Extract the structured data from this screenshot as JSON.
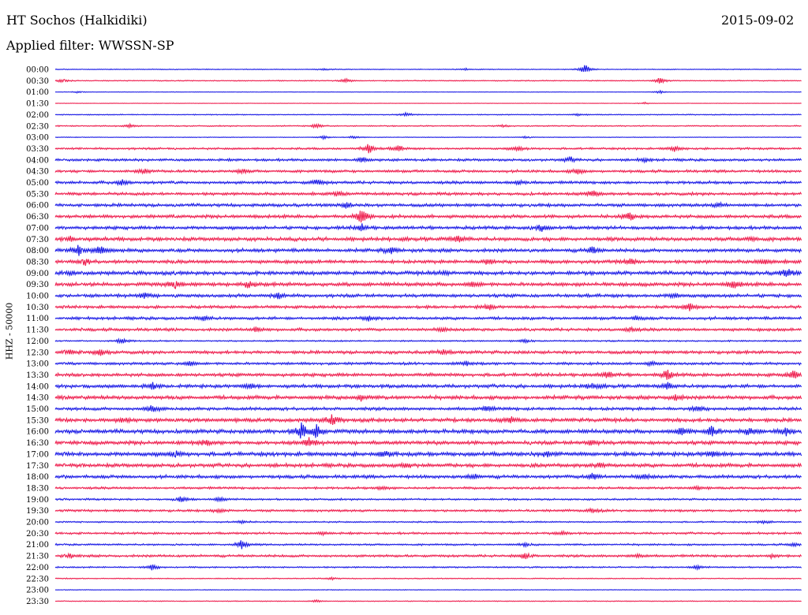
{
  "header": {
    "station": "HT Sochos (Halkidiki)",
    "date": "2015-09-02",
    "filter": "Applied filter: WWSSN-SP"
  },
  "colors": {
    "trace_a": "#1b1be6",
    "trace_b": "#ee1e4e"
  },
  "chart_data": {
    "type": "line",
    "title": "HT Sochos (Halkidiki)",
    "subtitle": "Applied filter: WWSSN-SP",
    "date": "2015-09-02",
    "ylabel": "HHZ - 50000",
    "xlabel": "",
    "grid": false,
    "legend": "none",
    "series_colors": [
      "#1b1be6",
      "#ee1e4e"
    ],
    "rows": [
      {
        "label": "00:00",
        "color": "#1b1be6",
        "noise": 0.1,
        "events": [
          [
            0.71,
            1.6
          ],
          [
            0.55,
            0.3
          ],
          [
            0.36,
            0.3
          ]
        ]
      },
      {
        "label": "00:30",
        "color": "#ee1e4e",
        "noise": 0.12,
        "events": [
          [
            0.01,
            0.5
          ],
          [
            0.39,
            0.6
          ],
          [
            0.81,
            1.2
          ]
        ]
      },
      {
        "label": "01:00",
        "color": "#1b1be6",
        "noise": 0.05,
        "events": [
          [
            0.03,
            0.3
          ],
          [
            0.81,
            0.5
          ]
        ]
      },
      {
        "label": "01:30",
        "color": "#ee1e4e",
        "noise": 0.05,
        "events": [
          [
            0.79,
            0.3
          ]
        ]
      },
      {
        "label": "02:00",
        "color": "#1b1be6",
        "noise": 0.12,
        "events": [
          [
            0.47,
            0.6
          ],
          [
            0.7,
            0.3
          ]
        ]
      },
      {
        "label": "02:30",
        "color": "#ee1e4e",
        "noise": 0.14,
        "events": [
          [
            0.1,
            0.5
          ],
          [
            0.35,
            0.7
          ],
          [
            0.6,
            0.3
          ]
        ]
      },
      {
        "label": "03:00",
        "color": "#1b1be6",
        "noise": 0.08,
        "events": [
          [
            0.36,
            0.6
          ],
          [
            0.4,
            0.5
          ],
          [
            0.63,
            0.3
          ]
        ]
      },
      {
        "label": "03:30",
        "color": "#ee1e4e",
        "noise": 0.25,
        "events": [
          [
            0.42,
            1.6
          ],
          [
            0.46,
            0.9
          ],
          [
            0.62,
            0.8
          ],
          [
            0.83,
            0.9
          ]
        ]
      },
      {
        "label": "04:00",
        "color": "#1b1be6",
        "noise": 0.3,
        "events": [
          [
            0.41,
            0.8
          ],
          [
            0.69,
            0.8
          ],
          [
            0.79,
            0.6
          ]
        ]
      },
      {
        "label": "04:30",
        "color": "#ee1e4e",
        "noise": 0.32,
        "events": [
          [
            0.12,
            0.6
          ],
          [
            0.25,
            0.7
          ],
          [
            0.7,
            0.8
          ]
        ]
      },
      {
        "label": "05:00",
        "color": "#1b1be6",
        "noise": 0.35,
        "events": [
          [
            0.09,
            0.8
          ],
          [
            0.35,
            0.9
          ],
          [
            0.62,
            0.8
          ]
        ]
      },
      {
        "label": "05:30",
        "color": "#ee1e4e",
        "noise": 0.35,
        "events": [
          [
            0.38,
            0.7
          ],
          [
            0.72,
            1.0
          ]
        ]
      },
      {
        "label": "06:00",
        "color": "#1b1be6",
        "noise": 0.38,
        "events": [
          [
            0.39,
            0.8
          ],
          [
            0.89,
            0.6
          ]
        ]
      },
      {
        "label": "06:30",
        "color": "#ee1e4e",
        "noise": 0.4,
        "events": [
          [
            0.41,
            2.4
          ],
          [
            0.77,
            1.2
          ]
        ]
      },
      {
        "label": "07:00",
        "color": "#1b1be6",
        "noise": 0.4,
        "events": [
          [
            0.41,
            1.0
          ],
          [
            0.65,
            1.1
          ]
        ]
      },
      {
        "label": "07:30",
        "color": "#ee1e4e",
        "noise": 0.45,
        "events": [
          [
            0.02,
            0.8
          ],
          [
            0.54,
            1.1
          ],
          [
            0.93,
            0.7
          ]
        ]
      },
      {
        "label": "08:00",
        "color": "#1b1be6",
        "noise": 0.42,
        "events": [
          [
            0.03,
            1.6
          ],
          [
            0.06,
            1.8
          ],
          [
            0.45,
            1.0
          ],
          [
            0.72,
            1.0
          ]
        ]
      },
      {
        "label": "08:30",
        "color": "#ee1e4e",
        "noise": 0.42,
        "events": [
          [
            0.04,
            0.9
          ],
          [
            0.58,
            0.9
          ],
          [
            0.77,
            1.1
          ],
          [
            0.95,
            0.8
          ]
        ]
      },
      {
        "label": "09:00",
        "color": "#1b1be6",
        "noise": 0.45,
        "events": [
          [
            0.02,
            0.5
          ],
          [
            0.52,
            0.7
          ],
          [
            0.98,
            1.6
          ]
        ]
      },
      {
        "label": "09:30",
        "color": "#ee1e4e",
        "noise": 0.45,
        "events": [
          [
            0.16,
            1.3
          ],
          [
            0.26,
            1.0
          ],
          [
            0.56,
            0.8
          ],
          [
            0.91,
            1.2
          ]
        ]
      },
      {
        "label": "10:00",
        "color": "#1b1be6",
        "noise": 0.4,
        "events": [
          [
            0.12,
            0.8
          ],
          [
            0.3,
            0.9
          ],
          [
            0.83,
            0.7
          ]
        ]
      },
      {
        "label": "10:30",
        "color": "#ee1e4e",
        "noise": 0.35,
        "events": [
          [
            0.58,
            0.9
          ],
          [
            0.85,
            1.2
          ]
        ]
      },
      {
        "label": "11:00",
        "color": "#1b1be6",
        "noise": 0.35,
        "events": [
          [
            0.2,
            0.8
          ],
          [
            0.42,
            0.7
          ],
          [
            0.78,
            0.7
          ]
        ]
      },
      {
        "label": "11:30",
        "color": "#ee1e4e",
        "noise": 0.35,
        "events": [
          [
            0.27,
            0.7
          ],
          [
            0.52,
            0.6
          ],
          [
            0.77,
            0.6
          ]
        ]
      },
      {
        "label": "12:00",
        "color": "#1b1be6",
        "noise": 0.18,
        "events": [
          [
            0.09,
            1.0
          ],
          [
            0.63,
            0.5
          ]
        ]
      },
      {
        "label": "12:30",
        "color": "#ee1e4e",
        "noise": 0.38,
        "events": [
          [
            0.02,
            0.8
          ],
          [
            0.06,
            1.0
          ],
          [
            0.52,
            0.8
          ]
        ]
      },
      {
        "label": "13:00",
        "color": "#1b1be6",
        "noise": 0.32,
        "events": [
          [
            0.18,
            0.8
          ],
          [
            0.55,
            0.6
          ],
          [
            0.8,
            0.6
          ]
        ]
      },
      {
        "label": "13:30",
        "color": "#ee1e4e",
        "noise": 0.4,
        "events": [
          [
            0.74,
            1.1
          ],
          [
            0.82,
            1.5
          ],
          [
            0.99,
            1.3
          ]
        ]
      },
      {
        "label": "14:00",
        "color": "#1b1be6",
        "noise": 0.42,
        "events": [
          [
            0.13,
            0.8
          ],
          [
            0.26,
            0.8
          ],
          [
            0.72,
            0.8
          ],
          [
            0.82,
            1.0
          ]
        ]
      },
      {
        "label": "14:30",
        "color": "#ee1e4e",
        "noise": 0.45,
        "events": [
          [
            0.41,
            0.8
          ],
          [
            0.83,
            0.9
          ]
        ]
      },
      {
        "label": "15:00",
        "color": "#1b1be6",
        "noise": 0.38,
        "events": [
          [
            0.13,
            1.1
          ],
          [
            0.58,
            0.7
          ],
          [
            0.86,
            1.0
          ]
        ]
      },
      {
        "label": "15:30",
        "color": "#ee1e4e",
        "noise": 0.45,
        "events": [
          [
            0.09,
            0.7
          ],
          [
            0.37,
            1.6
          ],
          [
            0.61,
            0.8
          ]
        ]
      },
      {
        "label": "16:00",
        "color": "#1b1be6",
        "noise": 0.48,
        "events": [
          [
            0.33,
            2.6
          ],
          [
            0.35,
            2.2
          ],
          [
            0.84,
            1.4
          ],
          [
            0.88,
            1.8
          ],
          [
            0.93,
            1.3
          ],
          [
            0.98,
            1.3
          ]
        ]
      },
      {
        "label": "16:30",
        "color": "#ee1e4e",
        "noise": 0.45,
        "events": [
          [
            0.2,
            0.8
          ],
          [
            0.34,
            1.5
          ],
          [
            0.72,
            0.8
          ]
        ]
      },
      {
        "label": "17:00",
        "color": "#1b1be6",
        "noise": 0.48,
        "events": [
          [
            0.16,
            0.8
          ],
          [
            0.44,
            1.0
          ],
          [
            0.66,
            0.8
          ],
          [
            0.88,
            1.0
          ]
        ]
      },
      {
        "label": "17:30",
        "color": "#ee1e4e",
        "noise": 0.45,
        "events": [
          [
            0.47,
            0.8
          ],
          [
            0.73,
            0.7
          ]
        ]
      },
      {
        "label": "18:00",
        "color": "#1b1be6",
        "noise": 0.4,
        "events": [
          [
            0.56,
            0.7
          ],
          [
            0.72,
            1.2
          ],
          [
            0.79,
            0.8
          ]
        ]
      },
      {
        "label": "18:30",
        "color": "#ee1e4e",
        "noise": 0.28,
        "events": [
          [
            0.44,
            0.6
          ],
          [
            0.86,
            0.5
          ]
        ]
      },
      {
        "label": "19:00",
        "color": "#1b1be6",
        "noise": 0.22,
        "events": [
          [
            0.17,
            1.0
          ],
          [
            0.22,
            0.6
          ]
        ]
      },
      {
        "label": "19:30",
        "color": "#ee1e4e",
        "noise": 0.28,
        "events": [
          [
            0.22,
            0.6
          ],
          [
            0.72,
            0.7
          ]
        ]
      },
      {
        "label": "20:00",
        "color": "#1b1be6",
        "noise": 0.18,
        "events": [
          [
            0.25,
            0.5
          ],
          [
            0.95,
            0.5
          ]
        ]
      },
      {
        "label": "20:30",
        "color": "#ee1e4e",
        "noise": 0.26,
        "events": [
          [
            0.36,
            0.5
          ],
          [
            0.68,
            0.6
          ]
        ]
      },
      {
        "label": "21:00",
        "color": "#1b1be6",
        "noise": 0.22,
        "events": [
          [
            0.25,
            1.6
          ],
          [
            0.63,
            0.5
          ],
          [
            0.99,
            0.5
          ]
        ]
      },
      {
        "label": "21:30",
        "color": "#ee1e4e",
        "noise": 0.3,
        "events": [
          [
            0.02,
            0.6
          ],
          [
            0.63,
            1.0
          ],
          [
            0.78,
            0.7
          ],
          [
            0.96,
            0.6
          ]
        ]
      },
      {
        "label": "22:00",
        "color": "#1b1be6",
        "noise": 0.18,
        "events": [
          [
            0.13,
            1.0
          ],
          [
            0.86,
            0.5
          ]
        ]
      },
      {
        "label": "22:30",
        "color": "#ee1e4e",
        "noise": 0.12,
        "events": [
          [
            0.37,
            0.4
          ]
        ]
      },
      {
        "label": "23:00",
        "color": "#1b1be6",
        "noise": 0.08,
        "events": []
      },
      {
        "label": "23:30",
        "color": "#ee1e4e",
        "noise": 0.1,
        "events": [
          [
            0.35,
            0.4
          ]
        ]
      }
    ]
  }
}
